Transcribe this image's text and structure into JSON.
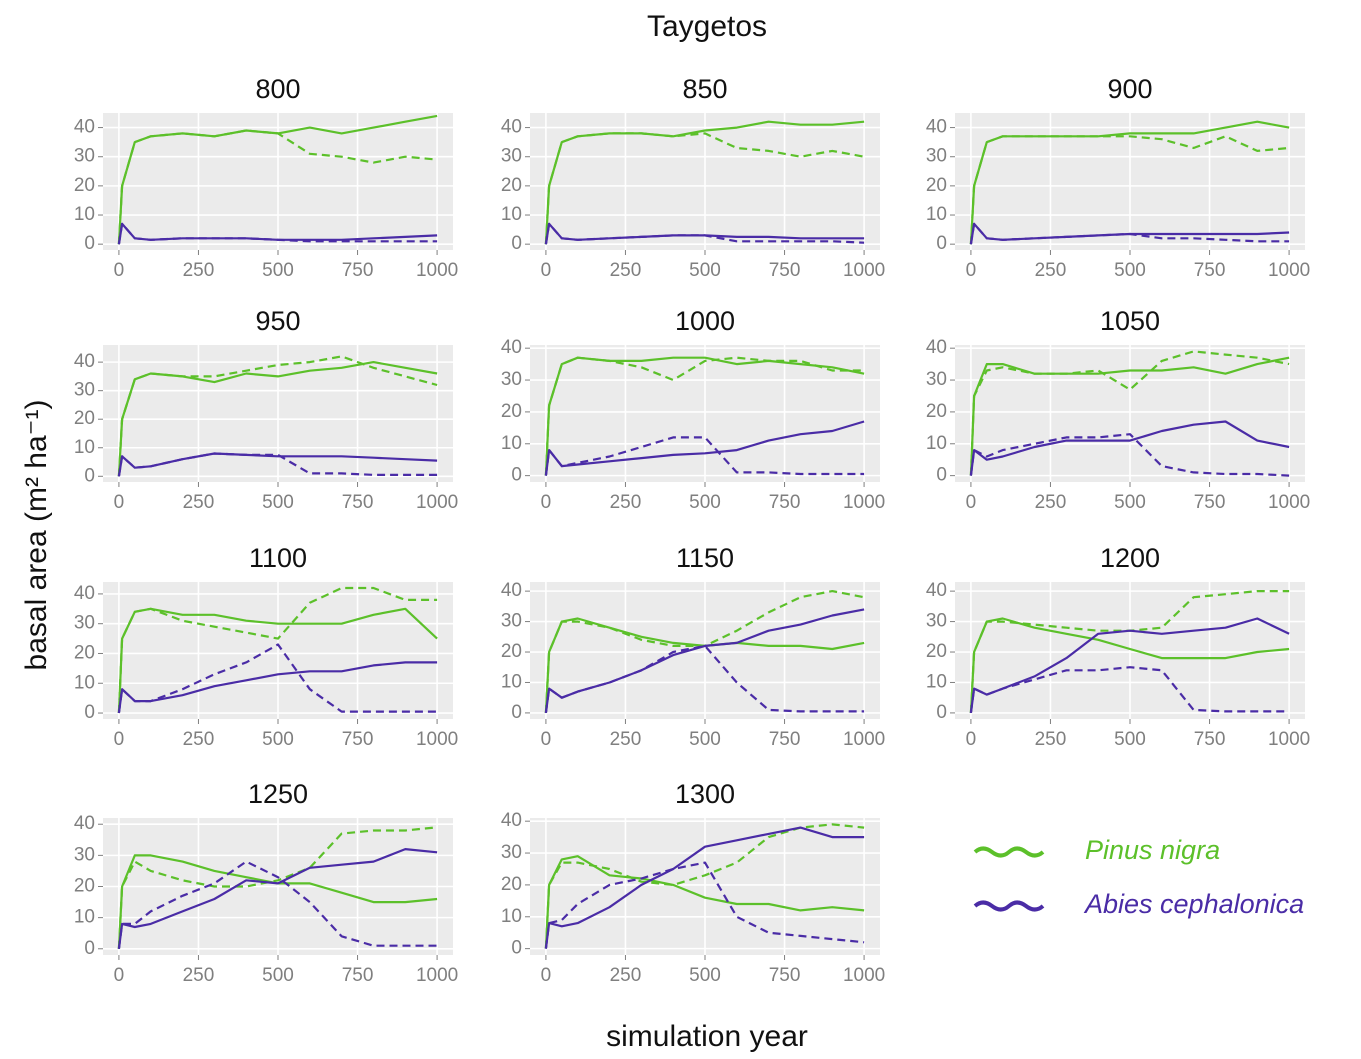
{
  "title": "Taygetos",
  "x_label": "simulation year",
  "y_label": "basal area (m² ha⁻¹)",
  "chart_data": [
    {
      "type": "line",
      "title": "800",
      "x": [
        0,
        10,
        50,
        100,
        200,
        300,
        400,
        500,
        600,
        700,
        800,
        900,
        1000
      ],
      "xlim": [
        -50,
        1050
      ],
      "xticks": [
        0,
        250,
        500,
        750,
        1000
      ],
      "ylim": [
        -2,
        45
      ],
      "yticks": [
        0,
        10,
        20,
        30,
        40
      ],
      "grid": true,
      "series": [
        {
          "name": "Pinus nigra",
          "color": "#5cc02a",
          "values": [
            0,
            20,
            35,
            37,
            38,
            37,
            39,
            38,
            40,
            38,
            40,
            42,
            44
          ]
        },
        {
          "color": "#5cc02a",
          "dashed": true,
          "values": [
            0,
            20,
            35,
            37,
            38,
            37,
            39,
            38,
            31,
            30,
            28,
            30,
            29
          ]
        },
        {
          "name": "Abies cephalonica",
          "color": "#4a2ca6",
          "values": [
            0,
            7,
            2,
            1.5,
            2,
            2,
            2,
            1.5,
            1.5,
            1.5,
            2,
            2.5,
            3
          ]
        },
        {
          "color": "#4a2ca6",
          "dashed": true,
          "values": [
            0,
            7,
            2,
            1.5,
            2,
            2,
            2,
            1.5,
            1,
            1,
            1,
            1,
            1
          ]
        }
      ]
    },
    {
      "type": "line",
      "title": "850",
      "x": [
        0,
        10,
        50,
        100,
        200,
        300,
        400,
        500,
        600,
        700,
        800,
        900,
        1000
      ],
      "xlim": [
        -50,
        1050
      ],
      "xticks": [
        0,
        250,
        500,
        750,
        1000
      ],
      "ylim": [
        -2,
        45
      ],
      "yticks": [
        0,
        10,
        20,
        30,
        40
      ],
      "grid": true,
      "series": [
        {
          "color": "#5cc02a",
          "values": [
            0,
            20,
            35,
            37,
            38,
            38,
            37,
            39,
            40,
            42,
            41,
            41,
            42
          ]
        },
        {
          "color": "#5cc02a",
          "dashed": true,
          "values": [
            0,
            20,
            35,
            37,
            38,
            38,
            37,
            38,
            33,
            32,
            30,
            32,
            30
          ]
        },
        {
          "color": "#4a2ca6",
          "values": [
            0,
            7,
            2,
            1.5,
            2,
            2.5,
            3,
            3,
            2.5,
            2.5,
            2,
            2,
            2
          ]
        },
        {
          "color": "#4a2ca6",
          "dashed": true,
          "values": [
            0,
            7,
            2,
            1.5,
            2,
            2.5,
            3,
            3,
            1,
            1,
            1,
            1,
            0.5
          ]
        }
      ]
    },
    {
      "type": "line",
      "title": "900",
      "x": [
        0,
        10,
        50,
        100,
        200,
        300,
        400,
        500,
        600,
        700,
        800,
        900,
        1000
      ],
      "xlim": [
        -50,
        1050
      ],
      "xticks": [
        0,
        250,
        500,
        750,
        1000
      ],
      "ylim": [
        -2,
        45
      ],
      "yticks": [
        0,
        10,
        20,
        30,
        40
      ],
      "grid": true,
      "series": [
        {
          "color": "#5cc02a",
          "values": [
            0,
            20,
            35,
            37,
            37,
            37,
            37,
            38,
            38,
            38,
            40,
            42,
            40
          ]
        },
        {
          "color": "#5cc02a",
          "dashed": true,
          "values": [
            0,
            20,
            35,
            37,
            37,
            37,
            37,
            37,
            36,
            33,
            37,
            32,
            33
          ]
        },
        {
          "color": "#4a2ca6",
          "values": [
            0,
            7,
            2,
            1.5,
            2,
            2.5,
            3,
            3.5,
            3.5,
            3.5,
            3.5,
            3.5,
            4
          ]
        },
        {
          "color": "#4a2ca6",
          "dashed": true,
          "values": [
            0,
            7,
            2,
            1.5,
            2,
            2.5,
            3,
            3.5,
            2,
            2,
            1.5,
            1,
            1
          ]
        }
      ]
    },
    {
      "type": "line",
      "title": "950",
      "x": [
        0,
        10,
        50,
        100,
        200,
        300,
        400,
        500,
        600,
        700,
        800,
        900,
        1000
      ],
      "xlim": [
        -50,
        1050
      ],
      "xticks": [
        0,
        250,
        500,
        750,
        1000
      ],
      "ylim": [
        -2,
        46
      ],
      "yticks": [
        0,
        10,
        20,
        30,
        40
      ],
      "grid": true,
      "series": [
        {
          "color": "#5cc02a",
          "values": [
            0,
            20,
            34,
            36,
            35,
            33,
            36,
            35,
            37,
            38,
            40,
            38,
            36
          ]
        },
        {
          "color": "#5cc02a",
          "dashed": true,
          "values": [
            0,
            20,
            34,
            36,
            35,
            35,
            37,
            39,
            40,
            42,
            38,
            35,
            32
          ]
        },
        {
          "color": "#4a2ca6",
          "values": [
            0,
            7,
            3,
            3.5,
            6,
            8,
            7.5,
            7,
            7,
            7,
            6.5,
            6,
            5.5
          ]
        },
        {
          "color": "#4a2ca6",
          "dashed": true,
          "values": [
            0,
            7,
            3,
            3.5,
            6,
            8,
            7.5,
            7.5,
            1,
            1,
            0.5,
            0.5,
            0.5
          ]
        }
      ]
    },
    {
      "type": "line",
      "title": "1000",
      "x": [
        0,
        10,
        50,
        100,
        200,
        300,
        400,
        500,
        600,
        700,
        800,
        900,
        1000
      ],
      "xlim": [
        -50,
        1050
      ],
      "xticks": [
        0,
        250,
        500,
        750,
        1000
      ],
      "ylim": [
        -2,
        41
      ],
      "yticks": [
        0,
        10,
        20,
        30,
        40
      ],
      "grid": true,
      "series": [
        {
          "color": "#5cc02a",
          "values": [
            0,
            22,
            35,
            37,
            36,
            36,
            37,
            37,
            35,
            36,
            35,
            34,
            32
          ]
        },
        {
          "color": "#5cc02a",
          "dashed": true,
          "values": [
            0,
            22,
            35,
            37,
            36,
            34,
            30,
            36,
            37,
            36,
            36,
            33,
            33
          ]
        },
        {
          "color": "#4a2ca6",
          "values": [
            0,
            8,
            3,
            3.5,
            4.5,
            5.5,
            6.5,
            7,
            8,
            11,
            13,
            14,
            17
          ]
        },
        {
          "color": "#4a2ca6",
          "dashed": true,
          "values": [
            0,
            8,
            3,
            4,
            6,
            9,
            12,
            12,
            1,
            1,
            0.5,
            0.5,
            0.5
          ]
        }
      ]
    },
    {
      "type": "line",
      "title": "1050",
      "x": [
        0,
        10,
        50,
        100,
        200,
        300,
        400,
        500,
        600,
        700,
        800,
        900,
        1000
      ],
      "xlim": [
        -50,
        1050
      ],
      "xticks": [
        0,
        250,
        500,
        750,
        1000
      ],
      "ylim": [
        -2,
        41
      ],
      "yticks": [
        0,
        10,
        20,
        30,
        40
      ],
      "grid": true,
      "series": [
        {
          "color": "#5cc02a",
          "values": [
            0,
            25,
            35,
            35,
            32,
            32,
            32,
            33,
            33,
            34,
            32,
            35,
            37
          ]
        },
        {
          "color": "#5cc02a",
          "dashed": true,
          "values": [
            0,
            25,
            33,
            34,
            32,
            32,
            33,
            27,
            36,
            39,
            38,
            37,
            35
          ]
        },
        {
          "color": "#4a2ca6",
          "values": [
            0,
            8,
            5,
            6,
            9,
            11,
            11,
            11,
            14,
            16,
            17,
            11,
            9
          ]
        },
        {
          "color": "#4a2ca6",
          "dashed": true,
          "values": [
            0,
            8,
            6,
            8,
            10,
            12,
            12,
            13,
            3,
            1,
            0.5,
            0.5,
            0
          ]
        }
      ]
    },
    {
      "type": "line",
      "title": "1100",
      "x": [
        0,
        10,
        50,
        100,
        200,
        300,
        400,
        500,
        600,
        700,
        800,
        900,
        1000
      ],
      "xlim": [
        -50,
        1050
      ],
      "xticks": [
        0,
        250,
        500,
        750,
        1000
      ],
      "ylim": [
        -2,
        44
      ],
      "yticks": [
        0,
        10,
        20,
        30,
        40
      ],
      "grid": true,
      "series": [
        {
          "color": "#5cc02a",
          "values": [
            0,
            25,
            34,
            35,
            33,
            33,
            31,
            30,
            30,
            30,
            33,
            35,
            25
          ]
        },
        {
          "color": "#5cc02a",
          "dashed": true,
          "values": [
            0,
            25,
            34,
            35,
            31,
            29,
            27,
            25,
            37,
            42,
            42,
            38,
            38
          ]
        },
        {
          "color": "#4a2ca6",
          "values": [
            0,
            8,
            4,
            4,
            6,
            9,
            11,
            13,
            14,
            14,
            16,
            17,
            17
          ]
        },
        {
          "color": "#4a2ca6",
          "dashed": true,
          "values": [
            0,
            8,
            4,
            4,
            8,
            13,
            17,
            23,
            8,
            0.5,
            0.5,
            0.5,
            0.5
          ]
        }
      ]
    },
    {
      "type": "line",
      "title": "1150",
      "x": [
        0,
        10,
        50,
        100,
        200,
        300,
        400,
        500,
        600,
        700,
        800,
        900,
        1000
      ],
      "xlim": [
        -50,
        1050
      ],
      "xticks": [
        0,
        250,
        500,
        750,
        1000
      ],
      "ylim": [
        -2,
        43
      ],
      "yticks": [
        0,
        10,
        20,
        30,
        40
      ],
      "grid": true,
      "series": [
        {
          "color": "#5cc02a",
          "values": [
            0,
            20,
            30,
            31,
            28,
            25,
            23,
            22,
            23,
            22,
            22,
            21,
            23
          ]
        },
        {
          "color": "#5cc02a",
          "dashed": true,
          "values": [
            0,
            20,
            30,
            30,
            28,
            24,
            22,
            22,
            27,
            33,
            38,
            40,
            38
          ]
        },
        {
          "color": "#4a2ca6",
          "values": [
            0,
            8,
            5,
            7,
            10,
            14,
            19,
            22,
            23,
            27,
            29,
            32,
            34
          ]
        },
        {
          "color": "#4a2ca6",
          "dashed": true,
          "values": [
            0,
            8,
            5,
            7,
            10,
            14,
            20,
            22,
            10,
            1,
            0.5,
            0.5,
            0.5
          ]
        }
      ]
    },
    {
      "type": "line",
      "title": "1200",
      "x": [
        0,
        10,
        50,
        100,
        200,
        300,
        400,
        500,
        600,
        700,
        800,
        900,
        1000
      ],
      "xlim": [
        -50,
        1050
      ],
      "xticks": [
        0,
        250,
        500,
        750,
        1000
      ],
      "ylim": [
        -2,
        43
      ],
      "yticks": [
        0,
        10,
        20,
        30,
        40
      ],
      "grid": true,
      "series": [
        {
          "color": "#5cc02a",
          "values": [
            0,
            20,
            30,
            31,
            28,
            26,
            24,
            21,
            18,
            18,
            18,
            20,
            21
          ]
        },
        {
          "color": "#5cc02a",
          "dashed": true,
          "values": [
            0,
            20,
            30,
            30,
            29,
            28,
            27,
            27,
            28,
            38,
            39,
            40,
            40
          ]
        },
        {
          "color": "#4a2ca6",
          "values": [
            0,
            8,
            6,
            8,
            12,
            18,
            26,
            27,
            26,
            27,
            28,
            31,
            26
          ]
        },
        {
          "color": "#4a2ca6",
          "dashed": true,
          "values": [
            0,
            8,
            6,
            8,
            11,
            14,
            14,
            15,
            14,
            1,
            0.5,
            0.5,
            0.5
          ]
        }
      ]
    },
    {
      "type": "line",
      "title": "1250",
      "x": [
        0,
        10,
        50,
        100,
        200,
        300,
        400,
        500,
        600,
        700,
        800,
        900,
        1000
      ],
      "xlim": [
        -50,
        1050
      ],
      "xticks": [
        0,
        250,
        500,
        750,
        1000
      ],
      "ylim": [
        -2,
        42
      ],
      "yticks": [
        0,
        10,
        20,
        30,
        40
      ],
      "grid": true,
      "series": [
        {
          "color": "#5cc02a",
          "values": [
            0,
            20,
            30,
            30,
            28,
            25,
            23,
            21,
            21,
            18,
            15,
            15,
            16
          ]
        },
        {
          "color": "#5cc02a",
          "dashed": true,
          "values": [
            0,
            20,
            28,
            25,
            22,
            20,
            20,
            22,
            26,
            37,
            38,
            38,
            39
          ]
        },
        {
          "color": "#4a2ca6",
          "values": [
            0,
            8,
            7,
            8,
            12,
            16,
            22,
            21,
            26,
            27,
            28,
            32,
            31
          ]
        },
        {
          "color": "#4a2ca6",
          "dashed": true,
          "values": [
            0,
            8,
            8,
            12,
            17,
            21,
            28,
            23,
            15,
            4,
            1,
            1,
            1
          ]
        }
      ]
    },
    {
      "type": "line",
      "title": "1300",
      "x": [
        0,
        10,
        50,
        100,
        200,
        300,
        400,
        500,
        600,
        700,
        800,
        900,
        1000
      ],
      "xlim": [
        -50,
        1050
      ],
      "xticks": [
        0,
        250,
        500,
        750,
        1000
      ],
      "ylim": [
        -2,
        41
      ],
      "yticks": [
        0,
        10,
        20,
        30,
        40
      ],
      "grid": true,
      "series": [
        {
          "color": "#5cc02a",
          "values": [
            0,
            20,
            28,
            29,
            23,
            22,
            20,
            16,
            14,
            14,
            12,
            13,
            12
          ]
        },
        {
          "color": "#5cc02a",
          "dashed": true,
          "values": [
            0,
            20,
            27,
            27,
            25,
            21,
            20,
            23,
            27,
            35,
            38,
            39,
            38
          ]
        },
        {
          "color": "#4a2ca6",
          "values": [
            0,
            8,
            7,
            8,
            13,
            20,
            25,
            32,
            34,
            36,
            38,
            35,
            35
          ]
        },
        {
          "color": "#4a2ca6",
          "dashed": true,
          "values": [
            0,
            8,
            9,
            14,
            20,
            22,
            25,
            27,
            10,
            5,
            4,
            3,
            2
          ]
        }
      ]
    }
  ]
}
